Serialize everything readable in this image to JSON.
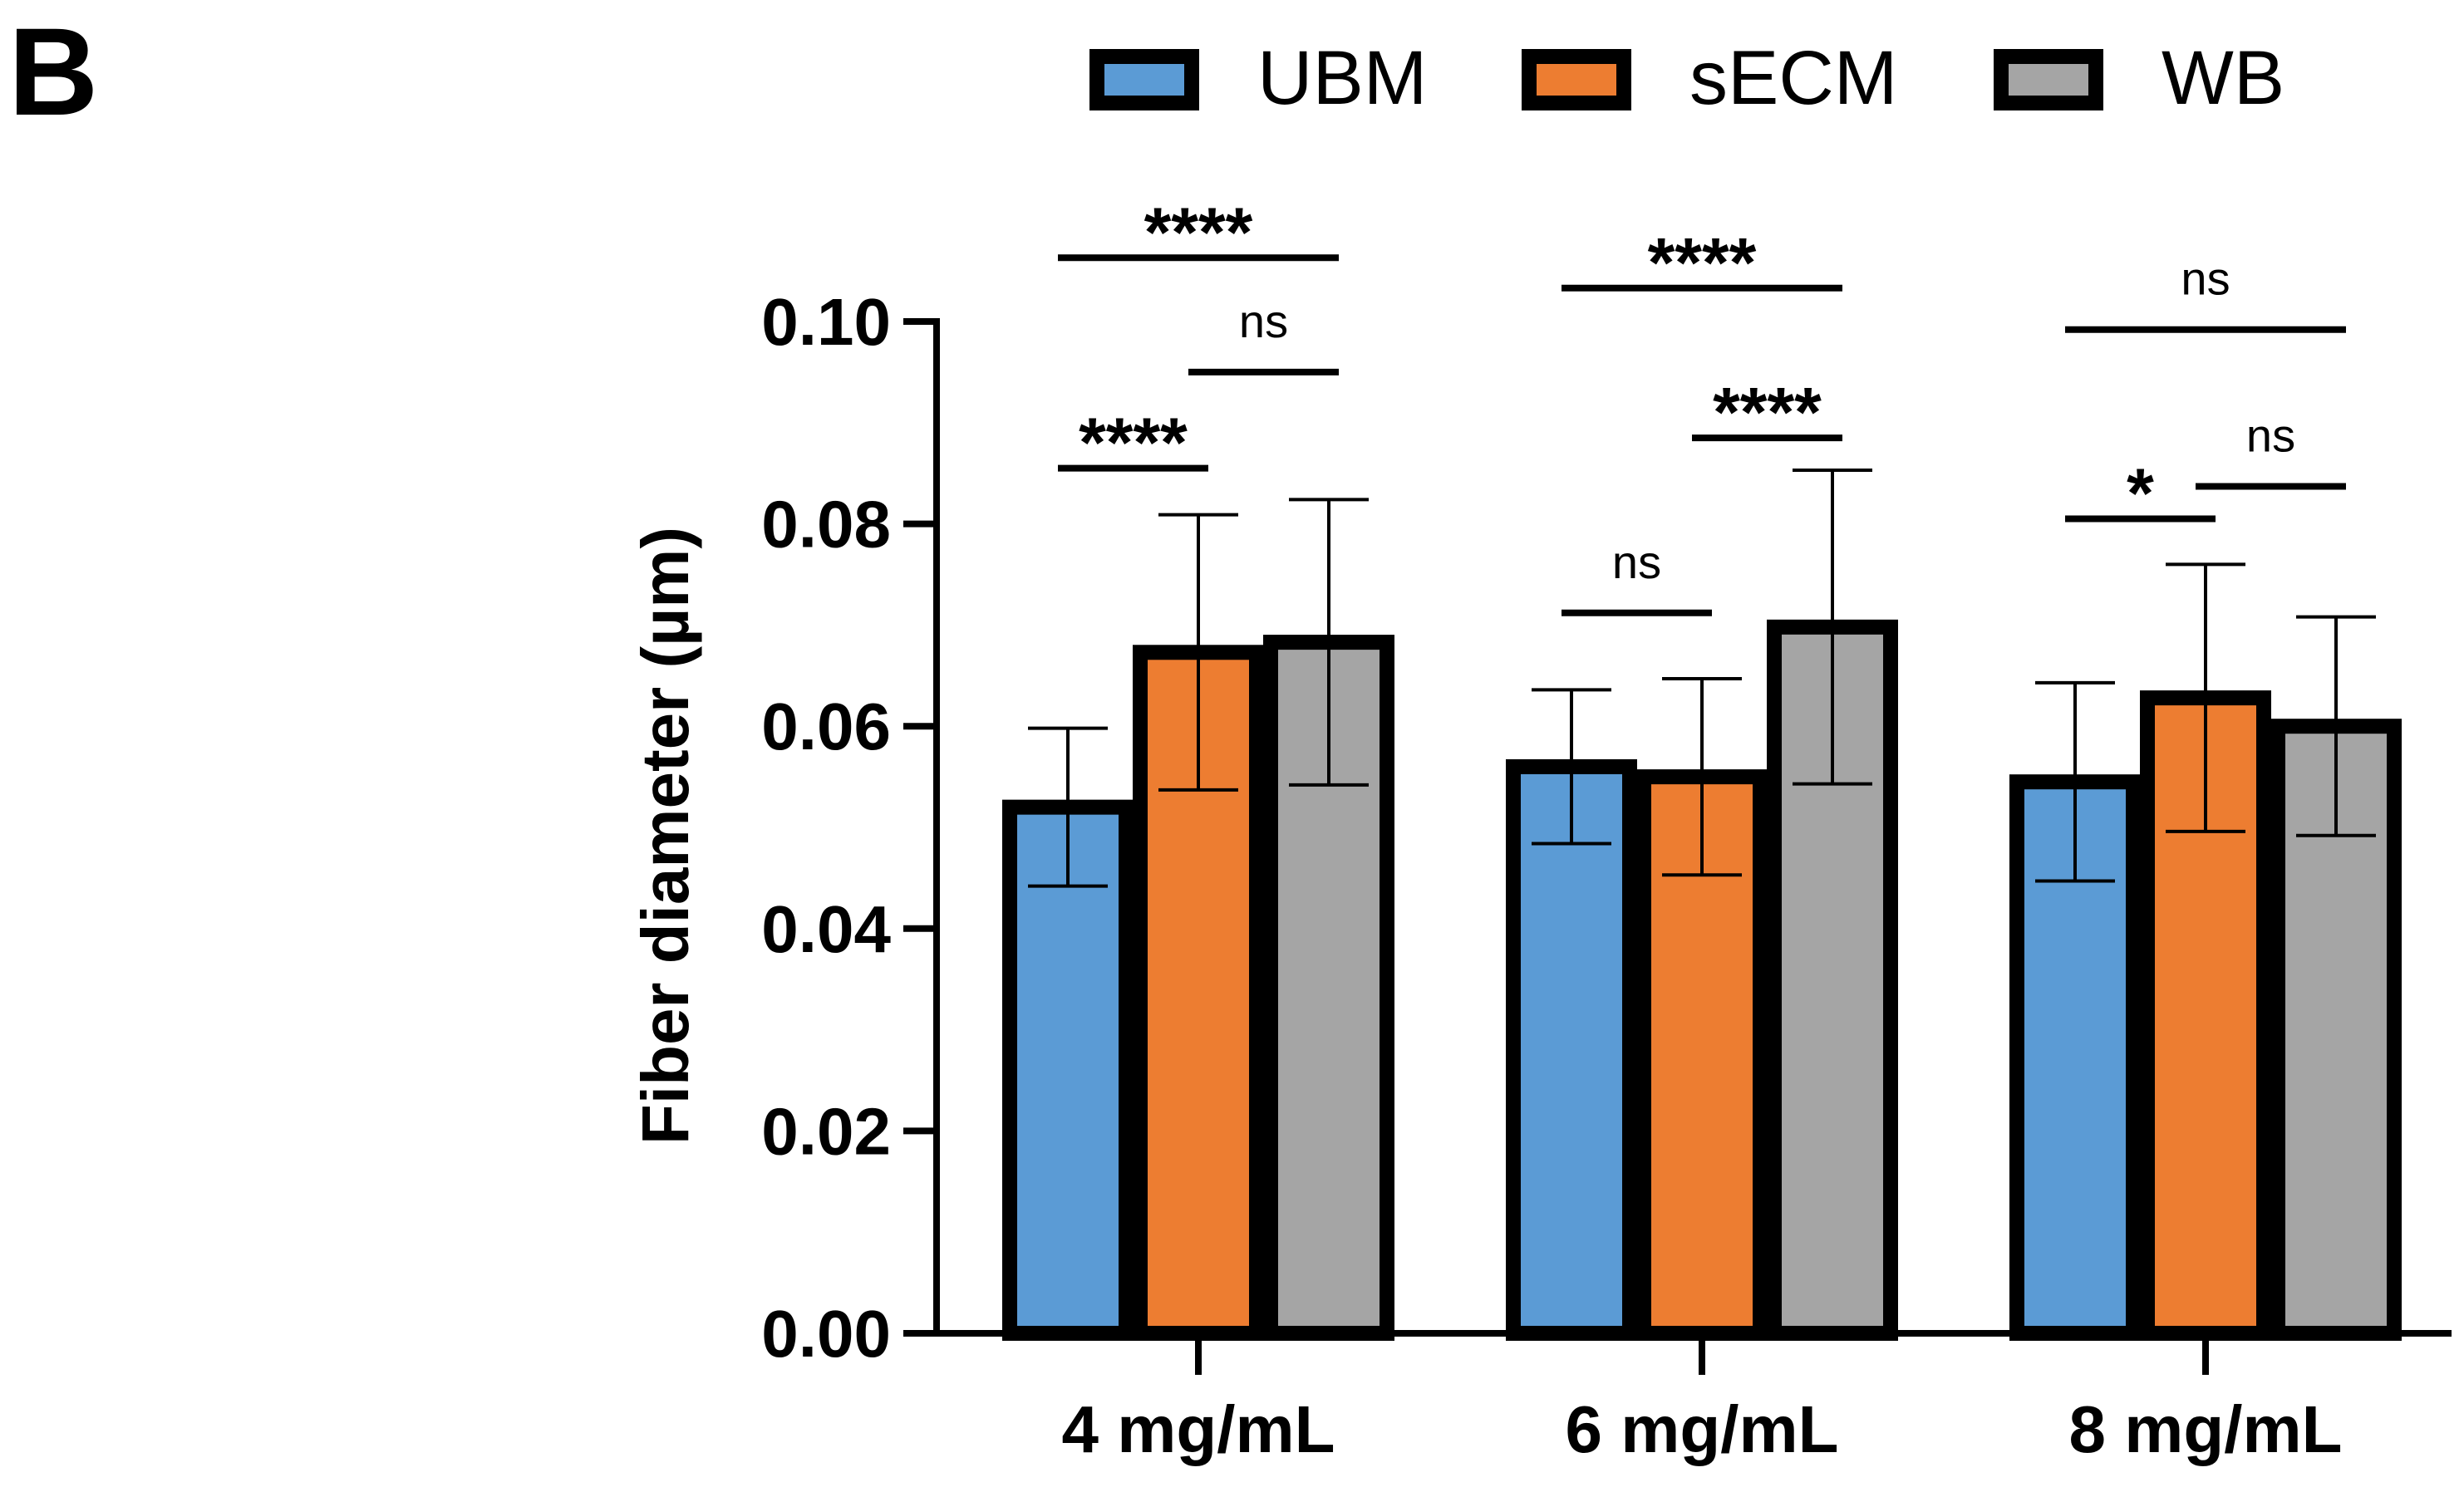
{
  "panel_label": "B",
  "chart_data": {
    "type": "bar",
    "title": "",
    "xlabel": "",
    "ylabel": "Fiber diameter (µm)",
    "ylim": [
      0,
      0.1
    ],
    "yticks": [
      0.0,
      0.02,
      0.04,
      0.06,
      0.08,
      0.1
    ],
    "ytick_labels": [
      "0.00",
      "0.02",
      "0.04",
      "0.06",
      "0.08",
      "0.10"
    ],
    "categories": [
      "4 mg/mL",
      "6 mg/mL",
      "8 mg/mL"
    ],
    "legend_position": "top",
    "series": [
      {
        "name": "UBM",
        "color": "#5B9BD5",
        "values": [
          0.052,
          0.056,
          0.0545
        ],
        "errors": [
          0.0078,
          0.0076,
          0.0098
        ]
      },
      {
        "name": "sECM",
        "color": "#ED7D31",
        "values": [
          0.0673,
          0.055,
          0.0628
        ],
        "errors": [
          0.0136,
          0.0097,
          0.0132
        ]
      },
      {
        "name": "WB",
        "color": "#A5A5A5",
        "values": [
          0.0683,
          0.0698,
          0.06
        ],
        "errors": [
          0.0141,
          0.0155,
          0.0108
        ]
      }
    ],
    "annotations": [
      {
        "group": 0,
        "from": 0,
        "to": 1,
        "label": "****",
        "y": 0.0855
      },
      {
        "group": 0,
        "from": 1,
        "to": 2,
        "label": "ns",
        "y": 0.095
      },
      {
        "group": 0,
        "from": 0,
        "to": 2,
        "label": "****",
        "y": 0.1063
      },
      {
        "group": 1,
        "from": 0,
        "to": 1,
        "label": "ns",
        "y": 0.0712
      },
      {
        "group": 1,
        "from": 1,
        "to": 2,
        "label": "****",
        "y": 0.0885
      },
      {
        "group": 1,
        "from": 0,
        "to": 2,
        "label": "****",
        "y": 0.1033
      },
      {
        "group": 2,
        "from": 0,
        "to": 1,
        "label": "*",
        "y": 0.0805
      },
      {
        "group": 2,
        "from": 1,
        "to": 2,
        "label": "ns",
        "y": 0.0837
      },
      {
        "group": 2,
        "from": 0,
        "to": 2,
        "label": "ns",
        "y": 0.0992
      }
    ]
  }
}
